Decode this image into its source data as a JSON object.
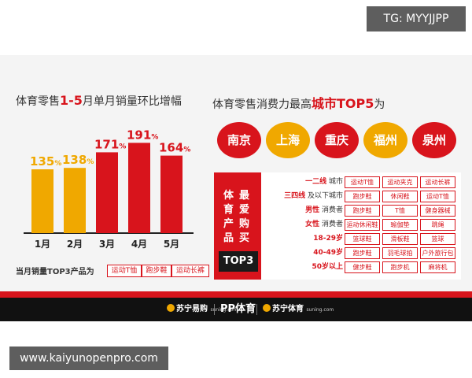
{
  "watermark_top": "TG: MYYJJPP",
  "watermark_bottom": "www.kaiyunopenpro.com",
  "left_title": {
    "pre": "体育零售",
    "highlight": "1-5",
    "post": "月单月销量环比增幅"
  },
  "chart_data": {
    "type": "bar",
    "categories": [
      "1月",
      "2月",
      "3月",
      "4月",
      "5月"
    ],
    "values": [
      135,
      138,
      171,
      191,
      164
    ],
    "unit": "%",
    "colors": [
      "#f0a800",
      "#f0a800",
      "#d8141c",
      "#d8141c",
      "#d8141c"
    ],
    "title": "体育零售1-5月单月销量环比增幅",
    "ylim": [
      0,
      200
    ]
  },
  "top3_products": {
    "label": "当月销量TOP3产品为",
    "items": [
      "运动T恤",
      "跑步鞋",
      "运动长裤"
    ]
  },
  "right_title": {
    "pre": "体育零售消费力最高",
    "highlight": "城市TOP5",
    "post": "为"
  },
  "cities": [
    {
      "name": "南京",
      "color": "#d8141c"
    },
    {
      "name": "上海",
      "color": "#f0a800"
    },
    {
      "name": "重庆",
      "color": "#d8141c"
    },
    {
      "name": "福州",
      "color": "#f0a800"
    },
    {
      "name": "泉州",
      "color": "#d8141c"
    }
  ],
  "table": {
    "side_title": [
      "体",
      "育",
      "产",
      "品",
      "最",
      "爱",
      "购",
      "买"
    ],
    "badge": "TOP3",
    "rows": [
      {
        "a": "一二线",
        "b": "城市",
        "cells": [
          "运动T恤",
          "运动夹克",
          "运动长裤"
        ]
      },
      {
        "a": "三四线",
        "b": "及以下城市",
        "cells": [
          "跑步鞋",
          "休闲鞋",
          "运动T恤"
        ]
      },
      {
        "a": "男性",
        "b": "消费者",
        "cells": [
          "跑步鞋",
          "T恤",
          "健身器械"
        ]
      },
      {
        "a": "女性",
        "b": "消费者",
        "cells": [
          "运动休闲鞋",
          "瑜伽垫",
          "跳绳"
        ]
      },
      {
        "a": "18-29岁",
        "b": "",
        "cells": [
          "篮球鞋",
          "滑板鞋",
          "篮球"
        ]
      },
      {
        "a": "40-49岁",
        "b": "",
        "cells": [
          "跑步鞋",
          "羽毛球拍",
          "户外旅行包"
        ]
      },
      {
        "a": "50岁以上",
        "b": "",
        "cells": [
          "健步鞋",
          "跑步机",
          "麻将机"
        ]
      }
    ]
  },
  "footer": {
    "brand1": "苏宁易购",
    "brand1_sub": "suning.com",
    "pp": "PP",
    "pp_text": "体育",
    "brand2": "苏宁体育",
    "brand2_sub": "suning.com"
  }
}
